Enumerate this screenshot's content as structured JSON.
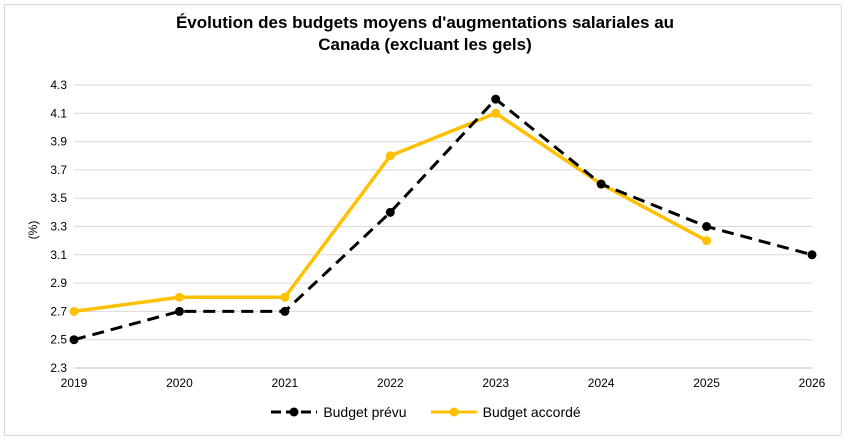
{
  "chart_data": {
    "type": "line",
    "title_lines": [
      "Évolution des budgets moyens d'augmentations salariales au",
      "Canada (excluant les gels)"
    ],
    "ylabel": "(%)",
    "xlabel": "",
    "x": [
      "2019",
      "2020",
      "2021",
      "2022",
      "2023",
      "2024",
      "2025",
      "2026"
    ],
    "ylim": [
      2.3,
      4.3
    ],
    "yticks": [
      "2.3",
      "2.5",
      "2.7",
      "2.9",
      "3.1",
      "3.3",
      "3.5",
      "3.7",
      "3.9",
      "4.1",
      "4.3"
    ],
    "grid": true,
    "legend_position": "bottom",
    "series": [
      {
        "name": "Budget prévu",
        "color": "#000000",
        "dashed": true,
        "values": [
          2.5,
          2.7,
          2.7,
          3.4,
          4.2,
          3.6,
          3.3,
          3.1
        ]
      },
      {
        "name": "Budget accordé",
        "color": "#FFC000",
        "dashed": false,
        "values": [
          2.7,
          2.8,
          2.8,
          3.8,
          4.1,
          3.6,
          3.2,
          null
        ]
      }
    ]
  }
}
